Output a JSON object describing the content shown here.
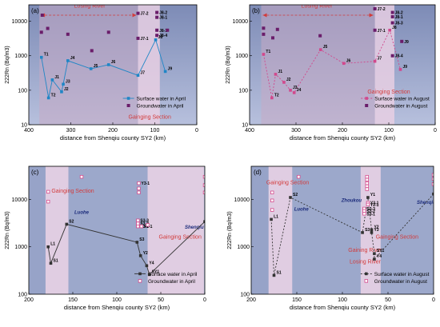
{
  "colors": {
    "panel_bg": "#7d8bb6",
    "light_bg": "#b7c0dd",
    "losing_band": "#c7a9c4",
    "gaining_band": "#e7cfe3",
    "line_april": "#1f86c6",
    "line_august": "#d1488c",
    "gw_april": "#6a1d6a",
    "gw_august": "#6a1d6a",
    "line_cd": "#333333",
    "gw_cd": "#d44a8c",
    "region_text": "#d23b3b",
    "river_text": "#1a2a7a"
  },
  "chart_data": [
    {
      "type": "scatter",
      "panel": "(a)",
      "xlabel": "distance from Shenqiu county SY2 (km)",
      "ylabel": "222Rn (Bq/m3)",
      "xlim": [
        400,
        0
      ],
      "ylim": [
        10,
        30000
      ],
      "log_y": true,
      "xticks": [
        400,
        300,
        200,
        100,
        0
      ],
      "yticks": [
        10,
        100,
        1000,
        10000
      ],
      "bands": [
        {
          "type": "losing",
          "from": 375,
          "to": 140
        },
        {
          "type": "gaining",
          "from": 140,
          "to": 88
        }
      ],
      "annotations": [
        {
          "text": "Losing River",
          "x": 255,
          "y": 25000
        },
        {
          "text": "Gainging Section",
          "x": 112,
          "y": 15
        }
      ],
      "legend": [
        "Surface water in April",
        "Groundwater in April"
      ],
      "series": [
        {
          "name": "Surface water in April",
          "kind": "surface",
          "points": [
            {
              "label": "T1",
              "x": 370,
              "y": 900
            },
            {
              "label": "T2",
              "x": 353,
              "y": 60
            },
            {
              "label": "J1",
              "x": 344,
              "y": 200
            },
            {
              "label": "J3",
              "x": 318,
              "y": 150
            },
            {
              "label": "J2",
              "x": 322,
              "y": 90
            },
            {
              "label": "J4",
              "x": 307,
              "y": 720
            },
            {
              "label": "J5",
              "x": 252,
              "y": 420
            },
            {
              "label": "J6",
              "x": 210,
              "y": 550
            },
            {
              "label": "J7",
              "x": 140,
              "y": 270
            },
            {
              "label": "J8",
              "x": 98,
              "y": 2900
            },
            {
              "label": "J9",
              "x": 75,
              "y": 350
            }
          ]
        },
        {
          "name": "Groundwater in April",
          "kind": "groundwater",
          "points": [
            {
              "label": "",
              "x": 368,
              "y": 15000
            },
            {
              "label": "",
              "x": 370,
              "y": 4800
            },
            {
              "label": "",
              "x": 355,
              "y": 6200
            },
            {
              "label": "",
              "x": 307,
              "y": 4200
            },
            {
              "label": "",
              "x": 250,
              "y": 1400
            },
            {
              "label": "",
              "x": 210,
              "y": 4800
            },
            {
              "label": "J7-2",
              "x": 140,
              "y": 17000
            },
            {
              "label": "J7-1",
              "x": 140,
              "y": 3200
            },
            {
              "label": "J8-2",
              "x": 95,
              "y": 18000
            },
            {
              "label": "J8-1",
              "x": 95,
              "y": 13000
            },
            {
              "label": "J8-3",
              "x": 95,
              "y": 5500
            },
            {
              "label": "J8-4",
              "x": 95,
              "y": 3900
            },
            {
              "label": "",
              "x": 70,
              "y": 5500
            }
          ]
        }
      ]
    },
    {
      "type": "scatter",
      "panel": "(b)",
      "xlabel": "distance from Shenqiu county SY2 (km)",
      "ylabel": "222Rn (Bq/m3)",
      "xlim": [
        400,
        0
      ],
      "ylim": [
        10,
        30000
      ],
      "log_y": true,
      "xticks": [
        400,
        300,
        200,
        100,
        0
      ],
      "yticks": [
        10,
        100,
        1000,
        10000
      ],
      "bands": [
        {
          "type": "losing",
          "from": 375,
          "to": 130
        },
        {
          "type": "gaining",
          "from": 130,
          "to": 88
        }
      ],
      "annotations": [
        {
          "text": "Losing River",
          "x": 255,
          "y": 25000
        },
        {
          "text": "Gainging Section",
          "x": 100,
          "y": 80
        }
      ],
      "legend": [
        "Surface water in August",
        "Groundwater in August"
      ],
      "series": [
        {
          "name": "Surface water in August",
          "kind": "surface",
          "points": [
            {
              "label": "T1",
              "x": 370,
              "y": 1100
            },
            {
              "label": "T2",
              "x": 352,
              "y": 60
            },
            {
              "label": "J1",
              "x": 344,
              "y": 290
            },
            {
              "label": "J2",
              "x": 326,
              "y": 170
            },
            {
              "label": "J3",
              "x": 312,
              "y": 100
            },
            {
              "label": "J4",
              "x": 304,
              "y": 85
            },
            {
              "label": "J5",
              "x": 247,
              "y": 1500
            },
            {
              "label": "J6",
              "x": 197,
              "y": 600
            },
            {
              "label": "J7",
              "x": 130,
              "y": 690
            },
            {
              "label": "J8",
              "x": 98,
              "y": 5500
            },
            {
              "label": "J9",
              "x": 75,
              "y": 400
            }
          ]
        },
        {
          "name": "Groundwater in August",
          "kind": "groundwater",
          "points": [
            {
              "label": "",
              "x": 370,
              "y": 6300
            },
            {
              "label": "",
              "x": 370,
              "y": 4200
            },
            {
              "label": "",
              "x": 350,
              "y": 3300
            },
            {
              "label": "",
              "x": 340,
              "y": 5800
            },
            {
              "label": "",
              "x": 248,
              "y": 3800
            },
            {
              "label": "J7-2",
              "x": 130,
              "y": 23000
            },
            {
              "label": "J7-1",
              "x": 130,
              "y": 5500
            },
            {
              "label": "J8-2",
              "x": 92,
              "y": 18000
            },
            {
              "label": "J8-1",
              "x": 92,
              "y": 13500
            },
            {
              "label": "J8-3",
              "x": 92,
              "y": 9000
            },
            {
              "label": "J8-4",
              "x": 92,
              "y": 1000
            },
            {
              "label": "J9",
              "x": 72,
              "y": 2600
            }
          ]
        }
      ]
    },
    {
      "type": "scatter",
      "panel": "(c)",
      "xlabel": "distance from Shenqiu county SY2 (km)",
      "ylabel": "222Rn (Bq/m3)",
      "xlim": [
        200,
        0
      ],
      "ylim": [
        100,
        50000
      ],
      "log_y": true,
      "xticks": [
        200,
        150,
        100,
        50,
        0
      ],
      "yticks": [
        100,
        1000,
        10000
      ],
      "bands": [
        {
          "type": "gaining",
          "from": 181,
          "to": 155
        },
        {
          "type": "gaining",
          "from": 65,
          "to": 1
        }
      ],
      "annotations": [
        {
          "text": "Gainging Section",
          "x": 150,
          "y": 14000,
          "color": "red"
        },
        {
          "text": "Gainging Section",
          "x": 28,
          "y": 1500,
          "color": "red"
        },
        {
          "text": "Luohe",
          "x": 140,
          "y": 5000,
          "color": "river"
        },
        {
          "text": "Shenqiu",
          "x": 12,
          "y": 2400,
          "color": "river"
        }
      ],
      "legend": [
        "Surface water in April",
        "Groundwater in April"
      ],
      "series": [
        {
          "name": "Surface water in April",
          "kind": "surface",
          "points": [
            {
              "label": "S1",
              "x": 175,
              "y": 450
            },
            {
              "label": "L1",
              "x": 178,
              "y": 1000
            },
            {
              "label": "S2",
              "x": 157,
              "y": 3000
            },
            {
              "label": "S3",
              "x": 77,
              "y": 1250
            },
            {
              "label": "Y2",
              "x": 73,
              "y": 650
            },
            {
              "label": "Y4",
              "x": 66,
              "y": 400
            },
            {
              "label": "SY1",
              "x": 63,
              "y": 260
            },
            {
              "label": "SY2",
              "x": 0,
              "y": 3400
            }
          ]
        },
        {
          "name": "Groundwater in April",
          "kind": "groundwater",
          "points": [
            {
              "label": "",
              "x": 178,
              "y": 9000
            },
            {
              "label": "",
              "x": 178,
              "y": 14500
            },
            {
              "label": "",
              "x": 140,
              "y": 30000
            },
            {
              "label": "Y3-1",
              "x": 75,
              "y": 22000
            },
            {
              "label": "",
              "x": 75,
              "y": 17000
            },
            {
              "label": "",
              "x": 75,
              "y": 14000
            },
            {
              "label": "S3-3",
              "x": 76,
              "y": 3600
            },
            {
              "label": "S3-2",
              "x": 76,
              "y": 3100
            },
            {
              "label": "S3-1",
              "x": 76,
              "y": 2700
            },
            {
              "label": "Y2-1",
              "x": 72,
              "y": 2700
            },
            {
              "label": "",
              "x": 65,
              "y": 2900
            },
            {
              "label": "",
              "x": 0,
              "y": 30000
            },
            {
              "label": "",
              "x": 0,
              "y": 20000
            },
            {
              "label": "",
              "x": 0,
              "y": 14000
            }
          ]
        }
      ]
    },
    {
      "type": "scatter",
      "panel": "(d)",
      "xlabel": "distance from Shenqiu county SY2 (km)",
      "ylabel": "222Rn (Bq/m3)",
      "xlim": [
        200,
        0
      ],
      "ylim": [
        100,
        50000
      ],
      "log_y": true,
      "xticks": [
        200,
        150,
        100,
        50,
        0
      ],
      "yticks": [
        100,
        1000,
        10000
      ],
      "bands": [
        {
          "type": "gaining",
          "from": 181,
          "to": 155
        },
        {
          "type": "gaining",
          "from": 80,
          "to": 58
        }
      ],
      "annotations": [
        {
          "text": "Gainging Section",
          "x": 160,
          "y": 21000,
          "color": "red"
        },
        {
          "text": "Gainging Section",
          "x": 40,
          "y": 1500,
          "color": "red"
        },
        {
          "text": "Gaining River",
          "x": 75,
          "y": 780,
          "color": "red"
        },
        {
          "text": "Losing River",
          "x": 75,
          "y": 450,
          "color": "red"
        },
        {
          "text": "Luohe",
          "x": 145,
          "y": 5800,
          "color": "river"
        },
        {
          "text": "Zhoukou",
          "x": 90,
          "y": 8800,
          "color": "river"
        },
        {
          "text": "Shenqiu",
          "x": 8,
          "y": 8000,
          "color": "river"
        }
      ],
      "legend": [
        "Surface water in August",
        "Groundwater in August"
      ],
      "series": [
        {
          "name": "Surface water in August",
          "kind": "surface",
          "points": [
            {
              "label": "S1",
              "x": 175,
              "y": 250
            },
            {
              "label": "L1",
              "x": 178,
              "y": 3800
            },
            {
              "label": "S2",
              "x": 157,
              "y": 11000
            },
            {
              "label": "S3",
              "x": 78,
              "y": 2000
            },
            {
              "label": "Y1",
              "x": 72,
              "y": 11000
            },
            {
              "label": "Y2",
              "x": 68,
              "y": 2300
            },
            {
              "label": "Y3",
              "x": 68,
              "y": 2000
            },
            {
              "label": "SY1",
              "x": 65,
              "y": 720
            },
            {
              "label": "Y4",
              "x": 65,
              "y": 550
            },
            {
              "label": "SY2",
              "x": 0,
              "y": 13000
            }
          ]
        },
        {
          "name": "Groundwater in August",
          "kind": "groundwater",
          "points": [
            {
              "label": "",
              "x": 177,
              "y": 14000
            },
            {
              "label": "",
              "x": 177,
              "y": 9500
            },
            {
              "label": "",
              "x": 177,
              "y": 6000
            },
            {
              "label": "",
              "x": 148,
              "y": 30000
            },
            {
              "label": "",
              "x": 73,
              "y": 30000
            },
            {
              "label": "",
              "x": 73,
              "y": 26000
            },
            {
              "label": "",
              "x": 73,
              "y": 22000
            },
            {
              "label": "",
              "x": 73,
              "y": 19000
            },
            {
              "label": "",
              "x": 73,
              "y": 16500
            },
            {
              "label": "Y3-1",
              "x": 72,
              "y": 8500
            },
            {
              "label": "Y2-1",
              "x": 72,
              "y": 7800
            },
            {
              "label": "S3-3",
              "x": 76,
              "y": 6400
            },
            {
              "label": "S3-2",
              "x": 76,
              "y": 5700
            },
            {
              "label": "S3-1",
              "x": 76,
              "y": 5000
            },
            {
              "label": "",
              "x": 0,
              "y": 33000
            },
            {
              "label": "",
              "x": 0,
              "y": 27000
            },
            {
              "label": "",
              "x": 0,
              "y": 21000
            }
          ]
        }
      ]
    }
  ]
}
